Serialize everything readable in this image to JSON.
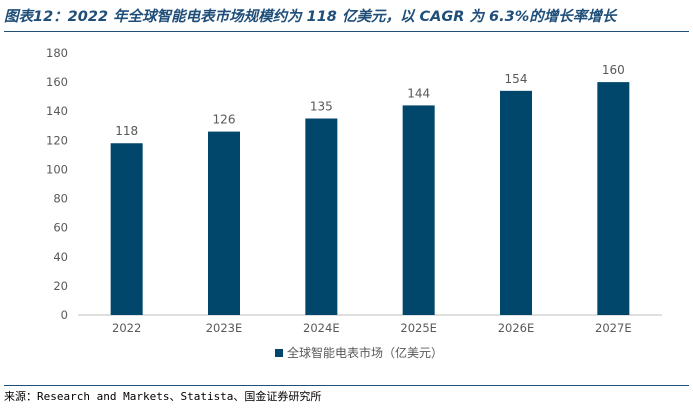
{
  "figure": {
    "title": "图表12：2022 年全球智能电表市场规模约为 118 亿美元，以 CAGR 为 6.3%的增长率增长",
    "source": "来源：Research and Markets、Statista、国金证券研究所"
  },
  "chart_data": {
    "type": "bar",
    "title": "",
    "categories": [
      "2022",
      "2023E",
      "2024E",
      "2025E",
      "2026E",
      "2027E"
    ],
    "series": [
      {
        "name": "全球智能电表市场（亿美元）",
        "values": [
          118,
          126,
          135,
          144,
          154,
          160
        ],
        "color": "#00476b"
      }
    ],
    "data_labels": [
      "118",
      "126",
      "135",
      "144",
      "154",
      "160"
    ],
    "xlabel": "",
    "ylabel": "",
    "ylim": [
      0,
      180
    ],
    "yticks": [
      "0",
      "20",
      "40",
      "60",
      "80",
      "100",
      "120",
      "140",
      "160",
      "180"
    ],
    "grid": false,
    "legend": "bottom",
    "colors": {
      "bar": "#00476b",
      "axis": "#bfbfbf",
      "tick_text": "#595959",
      "title": "#1f4e79"
    }
  }
}
